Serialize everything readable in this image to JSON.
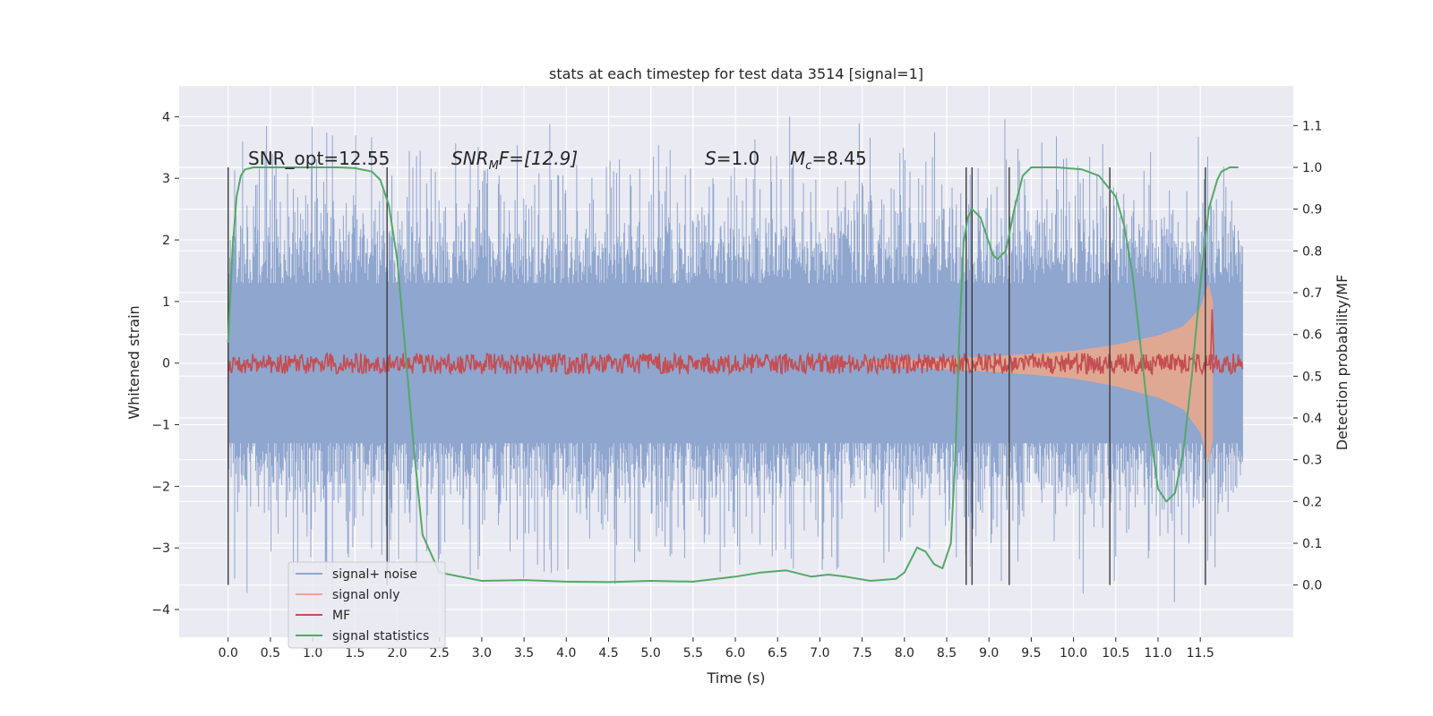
{
  "chart_data": {
    "type": "line",
    "title": "stats at each timestep for test data 3514 [signal=1]",
    "xlabel": "Time (s)",
    "ylabel": "Whitened strain",
    "y2label": "Detection probability/MF",
    "xlim": [
      -0.58,
      12.6
    ],
    "ylim": [
      -4.45,
      4.5
    ],
    "y2lim": [
      -0.125,
      1.195
    ],
    "x_ticks": [
      "0.0",
      "0.5",
      "1.0",
      "1.5",
      "2.0",
      "2.5",
      "3.0",
      "3.5",
      "4.0",
      "4.5",
      "5.0",
      "5.5",
      "6.0",
      "6.5",
      "7.0",
      "7.5",
      "8.0",
      "8.5",
      "9.0",
      "9.5",
      "10.0",
      "10.5",
      "11.0",
      "11.5"
    ],
    "y_ticks": [
      "−4",
      "−3",
      "−2",
      "−1",
      "0",
      "1",
      "2",
      "3",
      "4"
    ],
    "y2_ticks": [
      "0.0",
      "0.1",
      "0.2",
      "0.3",
      "0.4",
      "0.5",
      "0.6",
      "0.7",
      "0.8",
      "0.9",
      "1.0",
      "1.1"
    ],
    "grid": true,
    "legend_position": "lower-left",
    "annotations": {
      "snr_opt": "SNR_opt=12.55",
      "snr_mf_base": "SNR",
      "snr_mf_sub": "M",
      "snr_mf_rest": "F=[12.9]",
      "s_sym": "S",
      "s_val": "=1.0",
      "mc_sym": "M",
      "mc_sub": "c",
      "mc_val": "=8.45"
    },
    "vertical_markers": [
      0.0,
      1.88,
      8.73,
      8.8,
      9.24,
      10.43,
      11.56
    ],
    "series": [
      {
        "name": "signal+ noise",
        "color": "#8fa6cf",
        "axis": "left",
        "x_range": [
          0.0,
          12.0
        ],
        "envelope_abs": 1.3,
        "peak_range": [
          2.0,
          4.1
        ]
      },
      {
        "name": "signal only",
        "color": "#e8a88c",
        "axis": "left",
        "x": [
          7.5,
          8.0,
          8.5,
          9.0,
          9.5,
          10.0,
          10.5,
          11.0,
          11.3,
          11.5,
          11.6,
          11.65
        ],
        "amplitude": [
          0.02,
          0.05,
          0.08,
          0.11,
          0.15,
          0.2,
          0.3,
          0.45,
          0.6,
          0.9,
          1.3,
          1.0
        ]
      },
      {
        "name": "MF",
        "color": "#c44e52",
        "axis": "right",
        "x_range": [
          0.0,
          12.0
        ],
        "baseline": 0.53,
        "noise_amp": 0.025
      },
      {
        "name": "signal statistics",
        "color": "#55a868",
        "axis": "right",
        "x": [
          0.0,
          0.05,
          0.1,
          0.15,
          0.2,
          0.3,
          0.5,
          1.0,
          1.3,
          1.5,
          1.7,
          1.8,
          1.9,
          2.0,
          2.1,
          2.2,
          2.3,
          2.5,
          3.0,
          3.5,
          4.0,
          4.5,
          5.0,
          5.5,
          6.0,
          6.3,
          6.6,
          6.9,
          7.1,
          7.3,
          7.6,
          7.9,
          8.0,
          8.1,
          8.15,
          8.25,
          8.35,
          8.45,
          8.55,
          8.6,
          8.65,
          8.7,
          8.75,
          8.8,
          8.9,
          9.0,
          9.05,
          9.1,
          9.2,
          9.3,
          9.4,
          9.5,
          9.8,
          10.1,
          10.3,
          10.5,
          10.6,
          10.7,
          10.8,
          10.9,
          11.0,
          11.1,
          11.2,
          11.3,
          11.4,
          11.5,
          11.6,
          11.7,
          11.75,
          11.85,
          11.95
        ],
        "y": [
          0.58,
          0.8,
          0.93,
          0.98,
          0.995,
          1.0,
          1.0,
          1.0,
          1.0,
          0.998,
          0.99,
          0.97,
          0.91,
          0.78,
          0.55,
          0.32,
          0.12,
          0.03,
          0.01,
          0.012,
          0.008,
          0.007,
          0.01,
          0.008,
          0.02,
          0.03,
          0.035,
          0.02,
          0.025,
          0.02,
          0.01,
          0.015,
          0.03,
          0.07,
          0.09,
          0.08,
          0.05,
          0.04,
          0.1,
          0.3,
          0.6,
          0.82,
          0.88,
          0.9,
          0.88,
          0.82,
          0.79,
          0.78,
          0.8,
          0.9,
          0.98,
          1.0,
          1.0,
          0.995,
          0.98,
          0.93,
          0.86,
          0.74,
          0.56,
          0.38,
          0.23,
          0.2,
          0.22,
          0.32,
          0.5,
          0.72,
          0.9,
          0.97,
          0.99,
          1.0,
          1.0
        ]
      }
    ]
  }
}
